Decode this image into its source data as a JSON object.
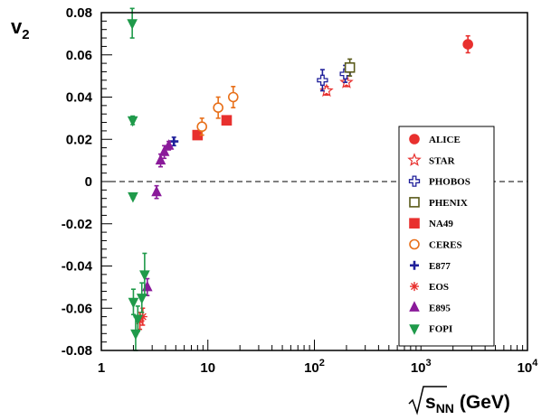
{
  "chart_data": {
    "type": "scatter",
    "title": "",
    "xlabel": {
      "pre": "s",
      "sub": "NN",
      "post": "(GeV)"
    },
    "ylabel": {
      "main": "v",
      "sub": "2"
    },
    "xscale": "log",
    "xlim": [
      1,
      10000
    ],
    "ylim": [
      -0.08,
      0.08
    ],
    "x_ticks": [
      {
        "value": 1,
        "base": "1",
        "exp": ""
      },
      {
        "value": 10,
        "base": "10",
        "exp": ""
      },
      {
        "value": 100,
        "base": "10",
        "exp": "2"
      },
      {
        "value": 1000,
        "base": "10",
        "exp": "3"
      },
      {
        "value": 10000,
        "base": "10",
        "exp": "4"
      }
    ],
    "y_ticks": [
      {
        "value": 0.08,
        "label": "0.08"
      },
      {
        "value": 0.06,
        "label": "0.06"
      },
      {
        "value": 0.04,
        "label": "0.04"
      },
      {
        "value": 0.02,
        "label": "0.02"
      },
      {
        "value": 0,
        "label": "0"
      },
      {
        "value": -0.02,
        "label": "-0.02"
      },
      {
        "value": -0.04,
        "label": "-0.04"
      },
      {
        "value": -0.06,
        "label": "-0.06"
      },
      {
        "value": -0.08,
        "label": "-0.08"
      }
    ],
    "reference_line": {
      "y": 0,
      "style": "dashed"
    },
    "grid": false,
    "legend": "right",
    "series": [
      {
        "name": "ALICE",
        "marker": "circle",
        "filled": true,
        "color": "#e8302e",
        "points": [
          {
            "x": 2760,
            "y": 0.065,
            "err": 0.004
          }
        ]
      },
      {
        "name": "STAR",
        "marker": "star",
        "filled": false,
        "color": "#e8302e",
        "points": [
          {
            "x": 130,
            "y": 0.043,
            "err": 0.002
          },
          {
            "x": 200,
            "y": 0.047,
            "err": 0.002
          }
        ]
      },
      {
        "name": "PHOBOS",
        "marker": "cross-open",
        "filled": false,
        "color": "#1f1f9a",
        "points": [
          {
            "x": 119,
            "y": 0.048,
            "err": 0.005
          },
          {
            "x": 195,
            "y": 0.051,
            "err": 0.004
          }
        ]
      },
      {
        "name": "PHENIX",
        "marker": "square",
        "filled": false,
        "color": "#5a5a1a",
        "points": [
          {
            "x": 215,
            "y": 0.054,
            "err": 0.004
          }
        ]
      },
      {
        "name": "NA49",
        "marker": "square",
        "filled": true,
        "color": "#e8302e",
        "points": [
          {
            "x": 8,
            "y": 0.022,
            "err": 0.001
          },
          {
            "x": 15,
            "y": 0.029,
            "err": 0.001
          }
        ]
      },
      {
        "name": "CERES",
        "marker": "circle",
        "filled": false,
        "color": "#e8701a",
        "points": [
          {
            "x": 8.8,
            "y": 0.026,
            "err": 0.004
          },
          {
            "x": 12.5,
            "y": 0.035,
            "err": 0.005
          },
          {
            "x": 17.3,
            "y": 0.04,
            "err": 0.005
          }
        ]
      },
      {
        "name": "E877",
        "marker": "plus",
        "filled": true,
        "color": "#1f1f9a",
        "points": [
          {
            "x": 4.8,
            "y": 0.019,
            "err": 0.002
          }
        ]
      },
      {
        "name": "EOS",
        "marker": "asterisk",
        "filled": false,
        "color": "#e8302e",
        "points": [
          {
            "x": 2.3,
            "y": -0.066,
            "err": 0.004
          },
          {
            "x": 2.45,
            "y": -0.064,
            "err": 0.004
          }
        ]
      },
      {
        "name": "E895",
        "marker": "triangle-up",
        "filled": true,
        "color": "#8a1a9a",
        "points": [
          {
            "x": 2.7,
            "y": -0.05,
            "err": 0.004
          },
          {
            "x": 3.3,
            "y": -0.005,
            "err": 0.003
          },
          {
            "x": 3.6,
            "y": 0.01,
            "err": 0.003
          },
          {
            "x": 3.9,
            "y": 0.014,
            "err": 0.003
          },
          {
            "x": 4.3,
            "y": 0.017,
            "err": 0.002
          }
        ]
      },
      {
        "name": "FOPI",
        "marker": "triangle-down",
        "filled": true,
        "color": "#1f9a4a",
        "points": [
          {
            "x": 1.95,
            "y": 0.075,
            "err": 0.007
          },
          {
            "x": 1.97,
            "y": 0.029,
            "err": 0.002
          },
          {
            "x": 1.98,
            "y": -0.007,
            "err": 0.001
          },
          {
            "x": 2.0,
            "y": -0.057,
            "err": 0.006
          },
          {
            "x": 2.1,
            "y": -0.072,
            "err": 0.008
          },
          {
            "x": 2.2,
            "y": -0.065,
            "err": 0.006
          },
          {
            "x": 2.4,
            "y": -0.055,
            "err": 0.007
          },
          {
            "x": 2.55,
            "y": -0.044,
            "err": 0.01
          }
        ]
      }
    ]
  }
}
